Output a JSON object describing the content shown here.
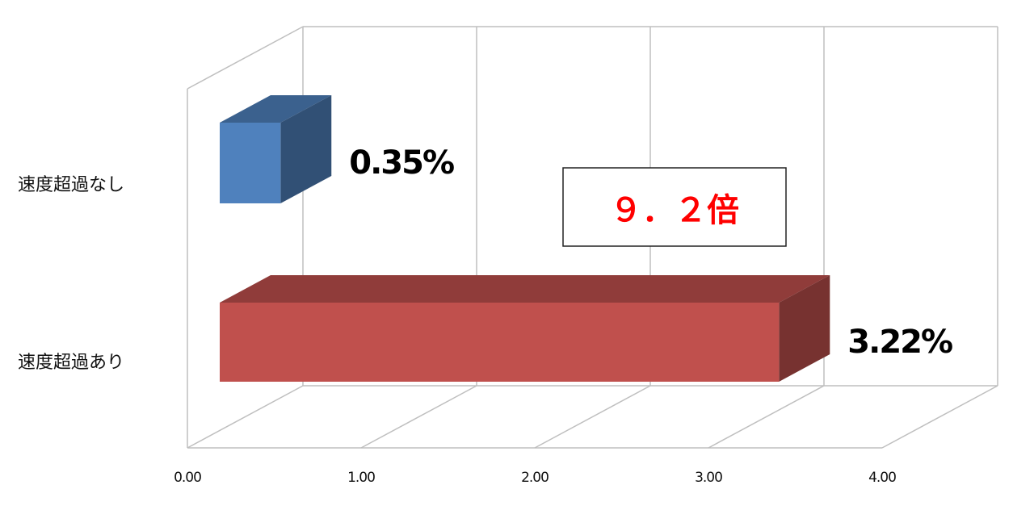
{
  "chart_data": {
    "type": "bar",
    "orientation": "horizontal",
    "style": "3d",
    "categories": [
      "速度超過なし",
      "速度超過あり"
    ],
    "values": [
      0.35,
      3.22
    ],
    "data_labels": [
      "0.35%",
      "3.22%"
    ],
    "colors": [
      "#4f81bd",
      "#c0504d"
    ],
    "xlim": [
      0,
      4
    ],
    "xticks": [
      "0.00",
      "1.00",
      "2.00",
      "3.00",
      "4.00"
    ],
    "grid": true,
    "annotation": {
      "text": "９．２倍",
      "color": "#ff0000"
    }
  }
}
